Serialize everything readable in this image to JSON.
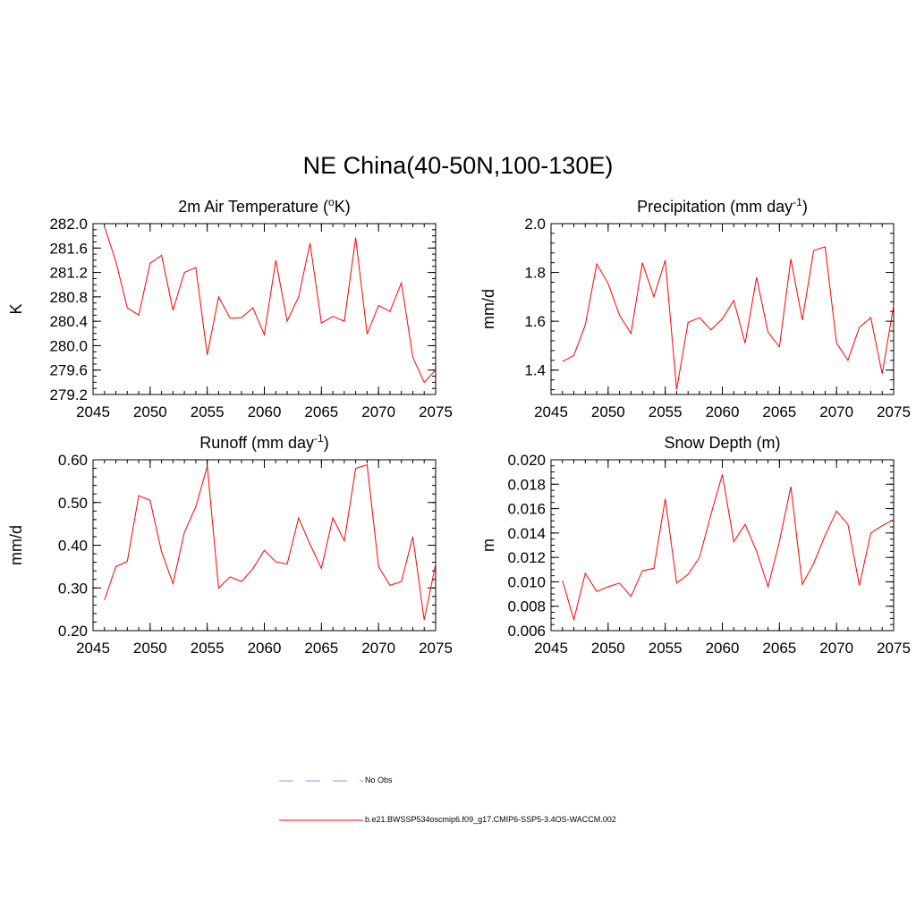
{
  "title": "NE China(40-50N,100-130E)",
  "colors": {
    "series": "#ff0000",
    "obs": "#9999ee",
    "axis": "#000000"
  },
  "legend": {
    "obs_label": "No Obs",
    "model_label": "b.e21.BWSSP534oscmip6.f09_g17.CMIP6-SSP5-3.4OS-WACCM.002"
  },
  "chart_data": [
    {
      "type": "line",
      "title": "2m Air Temperature (",
      "title_sup": "o",
      "title_tail": "K)",
      "xlabel": "",
      "ylabel": "K",
      "xlim": [
        2045,
        2075
      ],
      "ylim": [
        279.2,
        282.0
      ],
      "xticks": [
        2045,
        2050,
        2055,
        2060,
        2065,
        2070,
        2075
      ],
      "yticks": [
        279.2,
        279.6,
        280.0,
        280.4,
        280.8,
        281.2,
        281.6,
        282.0
      ],
      "ytick_labels": [
        "279.2",
        "279.6",
        "280.0",
        "280.4",
        "280.8",
        "281.2",
        "281.6",
        "282.0"
      ],
      "yminor": 0.1,
      "x": [
        2046,
        2047,
        2048,
        2049,
        2050,
        2051,
        2052,
        2053,
        2054,
        2055,
        2056,
        2057,
        2058,
        2059,
        2060,
        2061,
        2062,
        2063,
        2064,
        2065,
        2066,
        2067,
        2068,
        2069,
        2070,
        2071,
        2072,
        2073,
        2074,
        2075
      ],
      "y": [
        281.95,
        281.38,
        280.62,
        280.5,
        281.35,
        281.48,
        280.58,
        281.2,
        281.28,
        279.85,
        280.8,
        280.45,
        280.46,
        280.62,
        280.18,
        281.4,
        280.4,
        280.8,
        281.68,
        280.37,
        280.48,
        280.4,
        281.77,
        280.19,
        280.66,
        280.56,
        281.03,
        279.81,
        279.4,
        279.6
      ]
    },
    {
      "type": "line",
      "title": "Precipitation (mm day",
      "title_sup": "-1",
      "title_tail": ")",
      "xlabel": "",
      "ylabel": "mm/d",
      "xlim": [
        2045,
        2075
      ],
      "ylim": [
        1.3,
        2.0
      ],
      "xticks": [
        2045,
        2050,
        2055,
        2060,
        2065,
        2070,
        2075
      ],
      "yticks": [
        1.4,
        1.6,
        1.8,
        2.0
      ],
      "ytick_labels": [
        "1.4",
        "1.6",
        "1.8",
        "2.0"
      ],
      "yminor": 0.04,
      "x": [
        2046,
        2047,
        2048,
        2049,
        2050,
        2051,
        2052,
        2053,
        2054,
        2055,
        2056,
        2057,
        2058,
        2059,
        2060,
        2061,
        2062,
        2063,
        2064,
        2065,
        2066,
        2067,
        2068,
        2069,
        2070,
        2071,
        2072,
        2073,
        2074,
        2075
      ],
      "y": [
        1.435,
        1.46,
        1.585,
        1.835,
        1.755,
        1.625,
        1.55,
        1.84,
        1.7,
        1.85,
        1.32,
        1.595,
        1.615,
        1.565,
        1.61,
        1.685,
        1.51,
        1.78,
        1.555,
        1.495,
        1.855,
        1.605,
        1.89,
        1.905,
        1.51,
        1.44,
        1.575,
        1.615,
        1.385,
        1.665
      ]
    },
    {
      "type": "line",
      "title": "Runoff (mm day",
      "title_sup": "-1",
      "title_tail": ")",
      "xlabel": "",
      "ylabel": "mm/d",
      "xlim": [
        2045,
        2075
      ],
      "ylim": [
        0.2,
        0.6
      ],
      "xticks": [
        2045,
        2050,
        2055,
        2060,
        2065,
        2070,
        2075
      ],
      "yticks": [
        0.2,
        0.3,
        0.4,
        0.5,
        0.6
      ],
      "ytick_labels": [
        "0.20",
        "0.30",
        "0.40",
        "0.50",
        "0.60"
      ],
      "yminor": 0.02,
      "x": [
        2046,
        2047,
        2048,
        2049,
        2050,
        2051,
        2052,
        2053,
        2054,
        2055,
        2056,
        2057,
        2058,
        2059,
        2060,
        2061,
        2062,
        2063,
        2064,
        2065,
        2066,
        2067,
        2068,
        2069,
        2070,
        2071,
        2072,
        2073,
        2074,
        2075
      ],
      "y": [
        0.272,
        0.35,
        0.362,
        0.516,
        0.505,
        0.385,
        0.31,
        0.43,
        0.49,
        0.585,
        0.3,
        0.326,
        0.315,
        0.345,
        0.388,
        0.361,
        0.356,
        0.464,
        0.402,
        0.346,
        0.464,
        0.41,
        0.58,
        0.588,
        0.35,
        0.306,
        0.315,
        0.42,
        0.225,
        0.356
      ]
    },
    {
      "type": "line",
      "title": "Snow Depth (m)",
      "title_sup": "",
      "title_tail": "",
      "xlabel": "",
      "ylabel": "m",
      "xlim": [
        2045,
        2075
      ],
      "ylim": [
        0.006,
        0.02
      ],
      "xticks": [
        2045,
        2050,
        2055,
        2060,
        2065,
        2070,
        2075
      ],
      "yticks": [
        0.006,
        0.008,
        0.01,
        0.012,
        0.014,
        0.016,
        0.018,
        0.02
      ],
      "ytick_labels": [
        "0.006",
        "0.008",
        "0.010",
        "0.012",
        "0.014",
        "0.016",
        "0.018",
        "0.020"
      ],
      "yminor": 0.0005,
      "x": [
        2046,
        2047,
        2048,
        2049,
        2050,
        2051,
        2052,
        2053,
        2054,
        2055,
        2056,
        2057,
        2058,
        2059,
        2060,
        2061,
        2062,
        2063,
        2064,
        2065,
        2066,
        2067,
        2068,
        2069,
        2070,
        2071,
        2072,
        2073,
        2074,
        2075
      ],
      "y": [
        0.0101,
        0.0069,
        0.0107,
        0.0092,
        0.0096,
        0.0099,
        0.0088,
        0.0109,
        0.0111,
        0.0168,
        0.0099,
        0.0106,
        0.012,
        0.0155,
        0.0188,
        0.0133,
        0.0147,
        0.0125,
        0.0096,
        0.0133,
        0.0178,
        0.0098,
        0.0115,
        0.0138,
        0.0158,
        0.0147,
        0.0097,
        0.014,
        0.0146,
        0.0151
      ]
    }
  ]
}
